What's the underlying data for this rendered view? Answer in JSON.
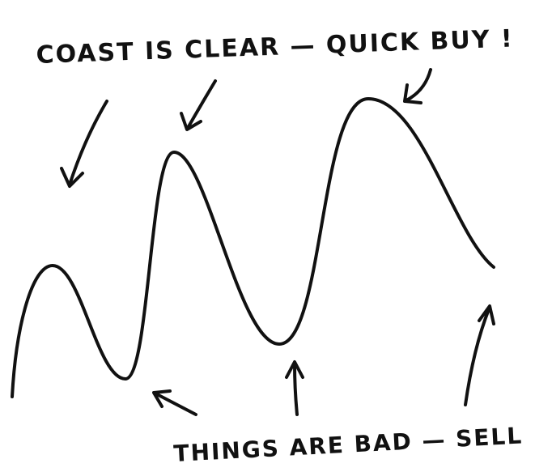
{
  "top_label": "COAST IS CLEAR — QUICK BUY !",
  "bottom_label": "THINGS ARE BAD — SELL !"
}
